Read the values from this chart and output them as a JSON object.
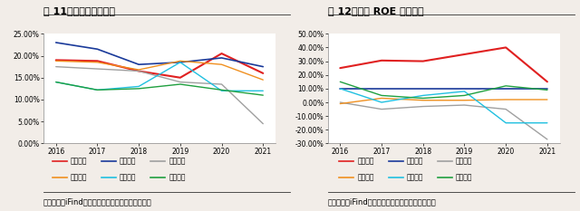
{
  "fig11": {
    "title": "图 11、毛利率同业对比",
    "years": [
      2016,
      2017,
      2018,
      2019,
      2020,
      2021
    ],
    "series": {
      "天能股份": {
        "color": "#e02020",
        "values": [
          19.0,
          18.8,
          16.5,
          15.0,
          20.5,
          16.0
        ],
        "lw": 1.5
      },
      "骆驼股份": {
        "color": "#1a3a9a",
        "values": [
          23.0,
          21.5,
          18.0,
          18.5,
          19.5,
          17.5
        ],
        "lw": 1.2
      },
      "南都电源": {
        "color": "#a0a0a0",
        "values": [
          17.5,
          17.0,
          16.5,
          14.0,
          13.5,
          4.5
        ],
        "lw": 1.0
      },
      "圣阳股份": {
        "color": "#f09020",
        "values": [
          18.8,
          18.5,
          16.8,
          18.8,
          18.0,
          14.5
        ],
        "lw": 1.0
      },
      "雄韬股份": {
        "color": "#20c0e0",
        "values": [
          14.0,
          12.2,
          13.0,
          18.5,
          12.0,
          12.0
        ],
        "lw": 1.0
      },
      "超威动力": {
        "color": "#20a040",
        "values": [
          14.0,
          12.2,
          12.5,
          13.5,
          12.2,
          11.0
        ],
        "lw": 1.0
      }
    },
    "ylim": [
      0,
      25
    ],
    "yticks": [
      0,
      5,
      10,
      15,
      20,
      25
    ],
    "ytick_labels": [
      "0.00%",
      "5.00%",
      "10.00%",
      "15.00%",
      "20.00%",
      "25.00%"
    ]
  },
  "fig12": {
    "title": "图 12、公司 ROE 行业领先",
    "years": [
      2016,
      2017,
      2018,
      2019,
      2020,
      2021
    ],
    "series": {
      "天能股份": {
        "color": "#e02020",
        "values": [
          25.0,
          30.5,
          30.0,
          35.0,
          40.0,
          15.0
        ],
        "lw": 1.5
      },
      "骆驼股份": {
        "color": "#1a3a9a",
        "values": [
          10.0,
          10.0,
          10.0,
          10.0,
          10.0,
          10.0
        ],
        "lw": 1.2
      },
      "南都电源": {
        "color": "#a0a0a0",
        "values": [
          0.0,
          -5.0,
          -3.0,
          -2.0,
          -5.0,
          -27.0
        ],
        "lw": 1.0
      },
      "圣阳股份": {
        "color": "#f09020",
        "values": [
          -1.0,
          3.0,
          1.5,
          1.5,
          2.0,
          2.0
        ],
        "lw": 1.0
      },
      "雄韬股份": {
        "color": "#20c0e0",
        "values": [
          10.0,
          0.0,
          5.0,
          8.0,
          -15.0,
          -15.0
        ],
        "lw": 1.0
      },
      "超威动力": {
        "color": "#20a040",
        "values": [
          15.0,
          5.0,
          3.0,
          5.0,
          12.0,
          9.0
        ],
        "lw": 1.0
      }
    },
    "ylim": [
      -30,
      50
    ],
    "yticks": [
      -30,
      -20,
      -10,
      0,
      10,
      20,
      30,
      40,
      50
    ],
    "ytick_labels": [
      "-30.00%",
      "-20.00%",
      "-10.00%",
      "0.00%",
      "10.00%",
      "20.00%",
      "30.00%",
      "40.00%",
      "50.00%"
    ]
  },
  "footer": "资料来源：iFind，兴业证券经济与金融研究院整理",
  "legend_order": [
    "天能股份",
    "骆驼股份",
    "南都电源",
    "圣阳股份",
    "雄韬股份",
    "超威动力"
  ],
  "background_color": "#f2ede8",
  "plot_bg_color": "#ffffff",
  "title_fontsize": 8,
  "label_fontsize": 5.5,
  "tick_fontsize": 5.5,
  "footer_fontsize": 6
}
